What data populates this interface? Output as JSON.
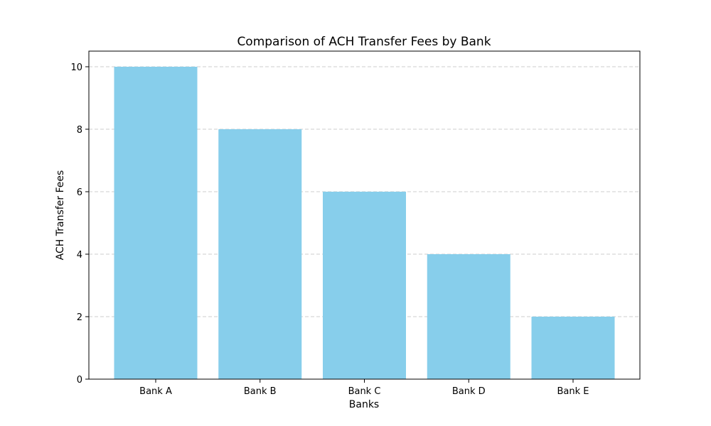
{
  "chart_data": {
    "type": "bar",
    "title": "Comparison of ACH Transfer Fees by Bank",
    "xlabel": "Banks",
    "ylabel": "ACH Transfer Fees",
    "categories": [
      "Bank A",
      "Bank B",
      "Bank C",
      "Bank D",
      "Bank E"
    ],
    "values": [
      10,
      8,
      6,
      4,
      2
    ],
    "ylim": [
      0,
      10.5
    ],
    "yticks": [
      0,
      2,
      4,
      6,
      8,
      10
    ],
    "grid": "y-dashed",
    "legend": "none",
    "bar_color": "#87CEEB",
    "grid_color": "#cccccc",
    "axis_color": "#000000"
  }
}
